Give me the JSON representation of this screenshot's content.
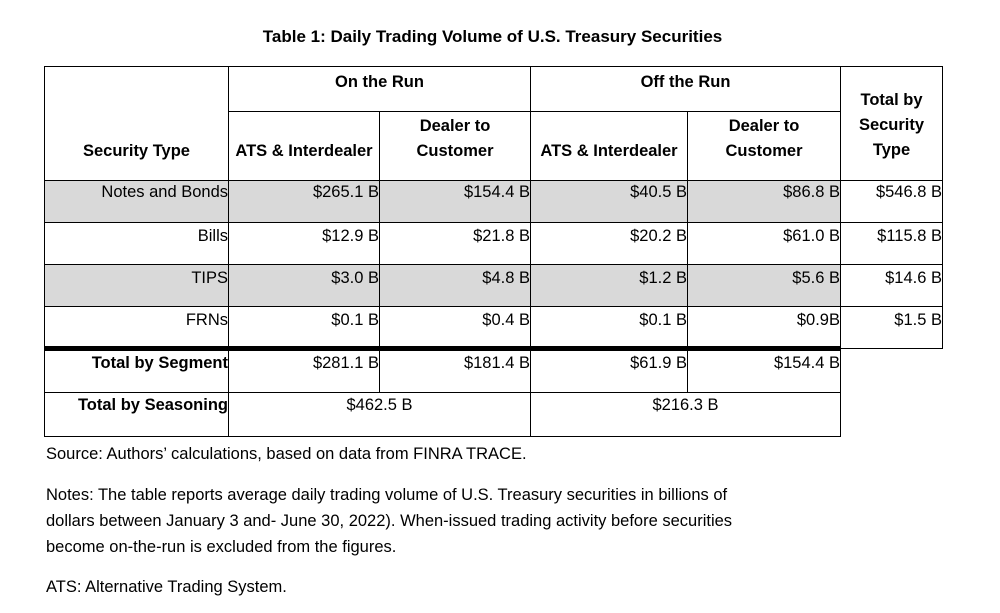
{
  "title": "Table 1: Daily Trading Volume of U.S. Treasury Securities",
  "headers": {
    "security_type": "Security Type",
    "on_the_run": "On the Run",
    "off_the_run": "Off the Run",
    "total_by_type": "Total by Security Type",
    "ats": "ATS & Interdealer",
    "dtc": "Dealer to Customer"
  },
  "rows": [
    {
      "label": "Notes and Bonds",
      "on_ats": "$265.1 B",
      "on_dtc": "$154.4 B",
      "off_ats": "$40.5 B",
      "off_dtc": "$86.8 B",
      "total": "$546.8 B"
    },
    {
      "label": "Bills",
      "on_ats": "$12.9 B",
      "on_dtc": "$21.8 B",
      "off_ats": "$20.2 B",
      "off_dtc": "$61.0 B",
      "total": "$115.8 B"
    },
    {
      "label": "TIPS",
      "on_ats": "$3.0 B",
      "on_dtc": "$4.8 B",
      "off_ats": "$1.2 B",
      "off_dtc": "$5.6 B",
      "total": "$14.6 B"
    },
    {
      "label": "FRNs",
      "on_ats": "$0.1 B",
      "on_dtc": "$0.4 B",
      "off_ats": "$0.1 B",
      "off_dtc": "$0.9B",
      "total": "$1.5 B"
    }
  ],
  "segment": {
    "label": "Total by Segment",
    "on_ats": "$281.1 B",
    "on_dtc": "$181.4 B",
    "off_ats": "$61.9 B",
    "off_dtc": "$154.4 B"
  },
  "seasoning": {
    "label": "Total by Seasoning",
    "on": "$462.5 B",
    "off": "$216.3 B"
  },
  "source": "Source: Authors’ calculations, based on data from FINRA TRACE.",
  "notes": [
    "Notes: The table reports average daily trading volume of U.S. Treasury securities in billions of",
    "dollars between January 3 and- June 30, 2022). When-issued trading activity before securities",
    "become on-the-run is excluded from the figures."
  ],
  "ats_note": "ATS: Alternative Trading System."
}
